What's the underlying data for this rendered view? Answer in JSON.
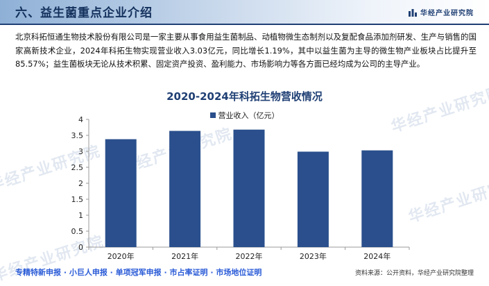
{
  "header": {
    "title": "六、益生菌重点企业介绍",
    "brand": "华经产业研究院"
  },
  "intro_text": "北京科拓恒通生物技术股份有限公司是一家主要从事食用益生菌制品、动植物微生态制剂以及复配食品添加剂研发、生产与销售的国家高新技术企业，2024年科拓生物实现营业收入3.03亿元，同比增长1.19%，其中以益生菌为主导的微生物产业板块占比提升至85.57%；益生菌板块无论从技术积累、固定资产投资、盈利能力、市场影响力等各方面已经均成为公司的主导产业。",
  "chart_data": {
    "type": "bar",
    "title": "2020-2024年科拓生物营收情况",
    "categories": [
      "2020年",
      "2021年",
      "2022年",
      "2023年",
      "2024年"
    ],
    "series": [
      {
        "name": "营业收入（亿元）",
        "values": [
          3.38,
          3.64,
          3.68,
          2.99,
          3.03
        ],
        "color": "#2a4f8c"
      }
    ],
    "ylim": [
      0,
      4
    ],
    "yticks": [
      "0",
      "0.5",
      "1",
      "1.5",
      "2",
      "2.5",
      "3",
      "3.5",
      "4"
    ],
    "grid": false,
    "legend_position": "top"
  },
  "watermark": "华经产业研究院",
  "footer": {
    "links": "专精特新申报 · 小巨人申报 · 单项冠军申报 · 市占率证明 · 市场地位证明",
    "source": "资料来源：公开资料，华经产业研究院整理"
  },
  "colors": {
    "brand_blue": "#1f3f74",
    "bar": "#2a4f8c",
    "link_blue": "#2a5bd7"
  }
}
